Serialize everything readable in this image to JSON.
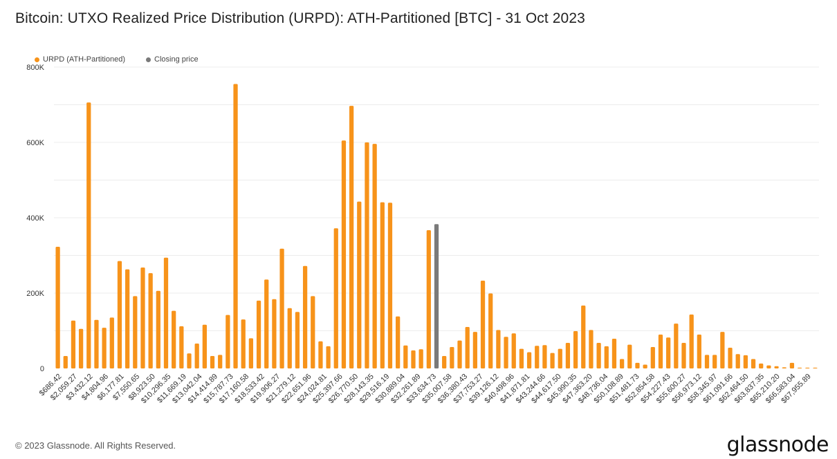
{
  "chart_data": {
    "type": "bar",
    "title": "Bitcoin: UTXO Realized Price Distribution (URPD): ATH-Partitioned [BTC] - 31 Oct 2023",
    "legend": [
      {
        "name": "URPD (ATH-Partitioned)",
        "color": "#f7931a"
      },
      {
        "name": "Closing price",
        "color": "#7a7a7a"
      }
    ],
    "xlabel": "",
    "ylabel": "",
    "ylim": [
      0,
      800000
    ],
    "yticks": [
      0,
      200000,
      400000,
      600000,
      800000
    ],
    "ytick_labels": [
      "0",
      "200K",
      "400K",
      "600K",
      "800K"
    ],
    "x_tick_labels": [
      "$686.42",
      "$2,059.27",
      "$3,432.12",
      "$4,804.96",
      "$6,177.81",
      "$7,550.65",
      "$8,923.50",
      "$10,296.35",
      "$11,669.19",
      "$13,042.04",
      "$14,414.89",
      "$15,787.73",
      "$17,160.58",
      "$18,533.42",
      "$19,906.27",
      "$21,279.12",
      "$22,651.96",
      "$24,024.81",
      "$25,397.66",
      "$26,770.50",
      "$28,143.35",
      "$29,516.19",
      "$30,889.04",
      "$32,261.89",
      "$33,634.73",
      "$35,007.58",
      "$36,380.43",
      "$37,753.27",
      "$39,126.12",
      "$40,498.96",
      "$41,871.81",
      "$43,244.66",
      "$44,617.50",
      "$45,990.35",
      "$47,363.20",
      "$48,736.04",
      "$50,108.89",
      "$51,481.73",
      "$52,854.58",
      "$54,227.43",
      "$55,600.27",
      "$56,973.12",
      "$58,345.97",
      "$61,091.66",
      "$62,464.50",
      "$63,837.35",
      "$65,210.20",
      "$66,583.04",
      "$67,955.89"
    ],
    "values": [
      323000,
      33000,
      127000,
      105000,
      706000,
      129000,
      108000,
      135000,
      285000,
      263000,
      192000,
      268000,
      253000,
      206000,
      294000,
      153000,
      112000,
      40000,
      66000,
      116000,
      33000,
      36000,
      142000,
      755000,
      130000,
      80000,
      180000,
      236000,
      184000,
      318000,
      160000,
      150000,
      272000,
      192000,
      72000,
      59000,
      372000,
      605000,
      697000,
      443000,
      600000,
      596000,
      441000,
      440000,
      138000,
      61000,
      48000,
      51000,
      367000,
      383000,
      33000,
      57000,
      74000,
      110000,
      97000,
      233000,
      199000,
      102000,
      84000,
      93000,
      52000,
      43000,
      60000,
      62000,
      41000,
      52000,
      68000,
      99000,
      167000,
      102000,
      68000,
      59000,
      79000,
      25000,
      63000,
      15000,
      10000,
      57000,
      90000,
      82000,
      119000,
      68000,
      143000,
      90000,
      36000,
      36000,
      97000,
      55000,
      38000,
      35000,
      25000,
      13000,
      8000,
      6000,
      3000,
      15000,
      2000,
      2000,
      2000
    ],
    "highlight_index": 49,
    "bar_color": "#f7931a",
    "highlight_color": "#7a7a7a",
    "grid": true
  },
  "footer": {
    "copyright": "© 2023 Glassnode. All Rights Reserved.",
    "logo": "glassnode"
  }
}
